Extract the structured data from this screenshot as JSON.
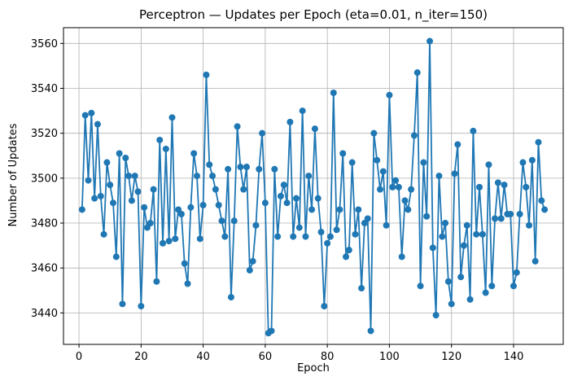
{
  "chart_data": {
    "type": "line",
    "title": "Perceptron — Updates per Epoch (eta=0.01, n_iter=150)",
    "xlabel": "Epoch",
    "ylabel": "Number of Updates",
    "xlim": [
      -5,
      156
    ],
    "ylim": [
      3426,
      3567
    ],
    "xticks": [
      0,
      20,
      40,
      60,
      80,
      100,
      120,
      140
    ],
    "yticks": [
      3440,
      3460,
      3480,
      3500,
      3520,
      3540,
      3560
    ],
    "grid": true,
    "marker": "circle",
    "color": "#1f77b4",
    "series": [
      {
        "x": [
          1,
          2,
          3,
          4,
          5,
          6,
          7,
          8,
          9,
          10,
          11,
          12,
          13,
          14,
          15,
          16,
          17,
          18,
          19,
          20,
          21,
          22,
          23,
          24,
          25,
          26,
          27,
          28,
          29,
          30,
          31,
          32,
          33,
          34,
          35,
          36,
          37,
          38,
          39,
          40,
          41,
          42,
          43,
          44,
          45,
          46,
          47,
          48,
          49,
          50,
          51,
          52,
          53,
          54,
          55,
          56,
          57,
          58,
          59,
          60,
          61,
          62,
          63,
          64,
          65,
          66,
          67,
          68,
          69,
          70,
          71,
          72,
          73,
          74,
          75,
          76,
          77,
          78,
          79,
          80,
          81,
          82,
          83,
          84,
          85,
          86,
          87,
          88,
          89,
          90,
          91,
          92,
          93,
          94,
          95,
          96,
          97,
          98,
          99,
          100,
          101,
          102,
          103,
          104,
          105,
          106,
          107,
          108,
          109,
          110,
          111,
          112,
          113,
          114,
          115,
          116,
          117,
          118,
          119,
          120,
          121,
          122,
          123,
          124,
          125,
          126,
          127,
          128,
          129,
          130,
          131,
          132,
          133,
          134,
          135,
          136,
          137,
          138,
          139,
          140,
          141,
          142,
          143,
          144,
          145,
          146,
          147,
          148,
          149,
          150
        ],
        "values": [
          3486,
          3528,
          3499,
          3529,
          3491,
          3524,
          3492,
          3475,
          3507,
          3497,
          3489,
          3465,
          3511,
          3444,
          3509,
          3501,
          3490,
          3501,
          3494,
          3443,
          3487,
          3478,
          3480,
          3495,
          3454,
          3517,
          3471,
          3513,
          3472,
          3527,
          3473,
          3486,
          3484,
          3462,
          3453,
          3487,
          3511,
          3501,
          3473,
          3488,
          3546,
          3506,
          3501,
          3495,
          3488,
          3481,
          3474,
          3504,
          3447,
          3481,
          3523,
          3505,
          3495,
          3505,
          3459,
          3463,
          3479,
          3504,
          3520,
          3489,
          3431,
          3432,
          3504,
          3474,
          3492,
          3497,
          3489,
          3525,
          3474,
          3491,
          3478,
          3530,
          3474,
          3501,
          3486,
          3522,
          3491,
          3476,
          3443,
          3471,
          3474,
          3538,
          3477,
          3486,
          3511,
          3465,
          3468,
          3507,
          3475,
          3486,
          3451,
          3480,
          3482,
          3432,
          3520,
          3508,
          3495,
          3503,
          3479,
          3537,
          3496,
          3499,
          3496,
          3465,
          3490,
          3486,
          3495,
          3519,
          3547,
          3452,
          3507,
          3483,
          3561,
          3469,
          3439,
          3501,
          3474,
          3480,
          3454,
          3444,
          3502,
          3515,
          3456,
          3470,
          3479,
          3446,
          3521,
          3475,
          3496,
          3475,
          3449,
          3506,
          3452,
          3482,
          3498,
          3482,
          3497,
          3484,
          3484,
          3452,
          3458,
          3484,
          3507,
          3496,
          3479,
          3508,
          3463,
          3516,
          3490,
          3486
        ]
      }
    ]
  }
}
